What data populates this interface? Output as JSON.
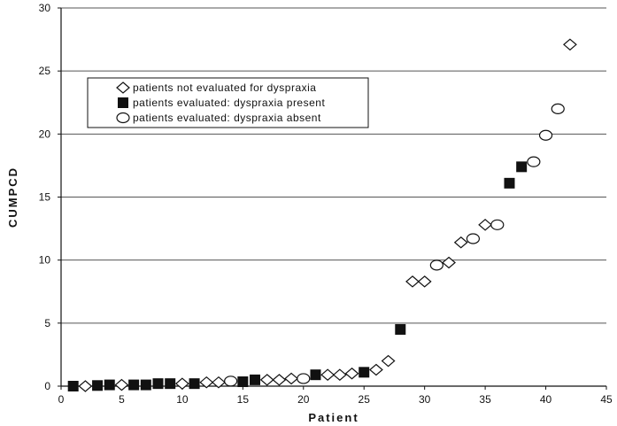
{
  "chart_data": {
    "type": "scatter",
    "xlabel": "Patient",
    "ylabel": "CUMPCD",
    "xlim": [
      0,
      45
    ],
    "ylim": [
      0,
      30
    ],
    "xticks": [
      0,
      5,
      10,
      15,
      20,
      25,
      30,
      35,
      40,
      45
    ],
    "yticks": [
      0,
      5,
      10,
      15,
      20,
      25,
      30
    ],
    "grid": "horizontal",
    "legend_position": "top-left",
    "series": [
      {
        "name": "patients not evaluated for dyspraxia",
        "marker": "diamond",
        "points": [
          [
            2,
            0.0
          ],
          [
            5,
            0.1
          ],
          [
            10,
            0.2
          ],
          [
            12,
            0.3
          ],
          [
            13,
            0.3
          ],
          [
            17,
            0.5
          ],
          [
            18,
            0.5
          ],
          [
            19,
            0.6
          ],
          [
            22,
            0.9
          ],
          [
            23,
            0.9
          ],
          [
            24,
            1.0
          ],
          [
            26,
            1.3
          ],
          [
            27,
            2.0
          ],
          [
            29,
            8.3
          ],
          [
            30,
            8.3
          ],
          [
            32,
            9.8
          ],
          [
            33,
            11.4
          ],
          [
            35,
            12.8
          ],
          [
            42,
            27.1
          ]
        ]
      },
      {
        "name": "patients evaluated: dyspraxia present",
        "marker": "square",
        "points": [
          [
            1,
            0.0
          ],
          [
            3,
            0.05
          ],
          [
            4,
            0.1
          ],
          [
            6,
            0.1
          ],
          [
            7,
            0.1
          ],
          [
            8,
            0.2
          ],
          [
            9,
            0.2
          ],
          [
            11,
            0.2
          ],
          [
            15,
            0.35
          ],
          [
            16,
            0.5
          ],
          [
            21,
            0.9
          ],
          [
            25,
            1.1
          ],
          [
            28,
            4.5
          ],
          [
            37,
            16.1
          ],
          [
            38,
            17.4
          ]
        ]
      },
      {
        "name": "patients evaluated:  dyspraxia absent",
        "marker": "circle",
        "points": [
          [
            14,
            0.4
          ],
          [
            20,
            0.6
          ],
          [
            31,
            9.6
          ],
          [
            34,
            11.7
          ],
          [
            36,
            12.8
          ],
          [
            39,
            17.8
          ],
          [
            40,
            19.9
          ],
          [
            41,
            22.0
          ]
        ]
      }
    ]
  }
}
